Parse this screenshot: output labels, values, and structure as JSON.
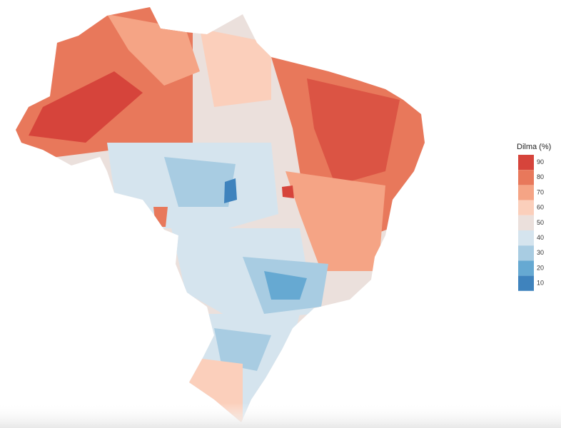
{
  "legend": {
    "title": "Dilma (%)",
    "items": [
      {
        "value": 90,
        "color": "#d6443b"
      },
      {
        "value": 80,
        "color": "#e8785b"
      },
      {
        "value": 70,
        "color": "#f5a485"
      },
      {
        "value": 60,
        "color": "#fbcfbb"
      },
      {
        "value": 50,
        "color": "#ebe0dc"
      },
      {
        "value": 40,
        "color": "#d5e4ee"
      },
      {
        "value": 30,
        "color": "#a8cce2"
      },
      {
        "value": 20,
        "color": "#66a9d2"
      },
      {
        "value": 10,
        "color": "#3f83bd"
      }
    ]
  }
}
